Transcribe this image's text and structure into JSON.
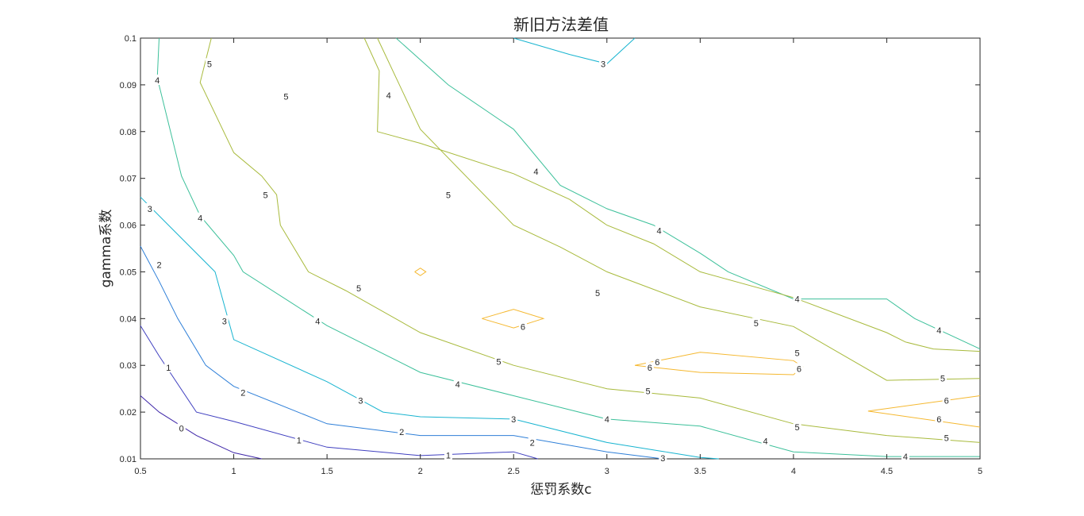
{
  "chart_data": {
    "type": "contour",
    "title": "新旧方法差值",
    "xlabel": "惩罚系数c",
    "ylabel": "gamma系数",
    "xlim": [
      0.5,
      5
    ],
    "ylim": [
      0.01,
      0.1
    ],
    "xticks": [
      "0.5",
      "1",
      "1.5",
      "2",
      "2.5",
      "3",
      "3.5",
      "4",
      "4.5",
      "5"
    ],
    "yticks": [
      "0.01",
      "0.02",
      "0.03",
      "0.04",
      "0.05",
      "0.06",
      "0.07",
      "0.08",
      "0.09",
      "0.1"
    ],
    "grid": false,
    "colors": {
      "0": "#3e26a8",
      "1": "#4040c0",
      "2": "#2e7fd8",
      "3": "#18b4d0",
      "4": "#3cc09a",
      "5": "#a8ba3c",
      "6": "#f5b830"
    },
    "levels": [
      {
        "level": 0,
        "paths": [
          [
            [
              0.5,
              0.0235
            ],
            [
              0.6,
              0.02
            ],
            [
              0.8,
              0.015
            ],
            [
              1.0,
              0.0113
            ],
            [
              1.15,
              0.01
            ]
          ]
        ],
        "labels": [
          {
            "text": "0",
            "at": [
              0.72,
              0.0165
            ]
          }
        ]
      },
      {
        "level": 1,
        "paths": [
          [
            [
              0.5,
              0.0385
            ],
            [
              0.6,
              0.032
            ],
            [
              0.8,
              0.02
            ],
            [
              1.0,
              0.018
            ],
            [
              1.5,
              0.0125
            ],
            [
              2.0,
              0.0107
            ],
            [
              2.5,
              0.0115
            ],
            [
              2.63,
              0.01
            ]
          ]
        ],
        "labels": [
          {
            "text": "1",
            "at": [
              0.65,
              0.0295
            ]
          },
          {
            "text": "1",
            "at": [
              1.35,
              0.014
            ]
          },
          {
            "text": "1",
            "at": [
              2.15,
              0.0108
            ]
          }
        ]
      },
      {
        "level": 2,
        "paths": [
          [
            [
              0.5,
              0.0555
            ],
            [
              0.6,
              0.048
            ],
            [
              0.7,
              0.04
            ],
            [
              0.85,
              0.03
            ],
            [
              1.0,
              0.0255
            ],
            [
              1.5,
              0.0175
            ],
            [
              2.0,
              0.015
            ],
            [
              2.5,
              0.015
            ],
            [
              3.0,
              0.0115
            ],
            [
              3.3,
              0.01
            ]
          ]
        ],
        "labels": [
          {
            "text": "2",
            "at": [
              0.6,
              0.0515
            ]
          },
          {
            "text": "2",
            "at": [
              1.05,
              0.0242
            ]
          },
          {
            "text": "2",
            "at": [
              1.9,
              0.0158
            ]
          },
          {
            "text": "2",
            "at": [
              2.6,
              0.0135
            ]
          }
        ]
      },
      {
        "level": 3,
        "paths": [
          [
            [
              0.5,
              0.066
            ],
            [
              0.65,
              0.06
            ],
            [
              0.9,
              0.05
            ],
            [
              1.0,
              0.0355
            ],
            [
              1.5,
              0.0265
            ],
            [
              1.8,
              0.02
            ],
            [
              2.0,
              0.019
            ],
            [
              2.5,
              0.0185
            ],
            [
              3.0,
              0.0135
            ],
            [
              3.5,
              0.0103
            ],
            [
              3.6,
              0.01
            ]
          ],
          [
            [
              2.5,
              0.1
            ],
            [
              2.8,
              0.0965
            ],
            [
              3.0,
              0.0945
            ],
            [
              3.15,
              0.1
            ]
          ]
        ],
        "labels": [
          {
            "text": "3",
            "at": [
              0.55,
              0.0635
            ]
          },
          {
            "text": "3",
            "at": [
              0.95,
              0.0395
            ]
          },
          {
            "text": "3",
            "at": [
              1.68,
              0.0225
            ]
          },
          {
            "text": "3",
            "at": [
              2.5,
              0.0185
            ]
          },
          {
            "text": "3",
            "at": [
              3.3,
              0.0102
            ]
          },
          {
            "text": "3",
            "at": [
              2.98,
              0.0945
            ]
          }
        ]
      },
      {
        "level": 4,
        "paths": [
          [
            [
              0.6,
              0.1
            ],
            [
              0.59,
              0.0915
            ],
            [
              0.72,
              0.0705
            ],
            [
              0.82,
              0.062
            ],
            [
              1.0,
              0.0535
            ],
            [
              1.05,
              0.05
            ],
            [
              1.5,
              0.0385
            ],
            [
              2.0,
              0.0285
            ],
            [
              2.5,
              0.0235
            ],
            [
              3.0,
              0.0185
            ],
            [
              3.5,
              0.017
            ],
            [
              4.0,
              0.0115
            ],
            [
              4.5,
              0.0105
            ],
            [
              5.0,
              0.0105
            ]
          ],
          [
            [
              1.87,
              0.1
            ],
            [
              2.15,
              0.09
            ],
            [
              2.5,
              0.0805
            ],
            [
              2.75,
              0.0685
            ],
            [
              3.0,
              0.0635
            ],
            [
              3.25,
              0.06
            ],
            [
              3.5,
              0.054
            ],
            [
              3.65,
              0.05
            ],
            [
              4.0,
              0.0442
            ],
            [
              4.5,
              0.0442
            ],
            [
              4.65,
              0.04
            ],
            [
              5.0,
              0.0335
            ]
          ]
        ],
        "labels": [
          {
            "text": "4",
            "at": [
              0.59,
              0.091
            ]
          },
          {
            "text": "4",
            "at": [
              0.82,
              0.0615
            ]
          },
          {
            "text": "4",
            "at": [
              1.45,
              0.0395
            ]
          },
          {
            "text": "4",
            "at": [
              2.2,
              0.026
            ]
          },
          {
            "text": "4",
            "at": [
              3.0,
              0.0185
            ]
          },
          {
            "text": "4",
            "at": [
              3.85,
              0.0138
            ]
          },
          {
            "text": "4",
            "at": [
              4.6,
              0.0105
            ]
          },
          {
            "text": "4",
            "at": [
              1.83,
              0.0878
            ]
          },
          {
            "text": "4",
            "at": [
              2.62,
              0.0715
            ]
          },
          {
            "text": "4",
            "at": [
              3.28,
              0.0588
            ]
          },
          {
            "text": "4",
            "at": [
              4.02,
              0.0442
            ]
          },
          {
            "text": "4",
            "at": [
              4.78,
              0.0375
            ]
          }
        ]
      },
      {
        "level": 5,
        "paths": [
          [
            [
              0.88,
              0.1
            ],
            [
              0.82,
              0.0905
            ],
            [
              1.0,
              0.0755
            ],
            [
              1.15,
              0.0705
            ],
            [
              1.23,
              0.0665
            ],
            [
              1.25,
              0.06
            ],
            [
              1.4,
              0.05
            ],
            [
              1.6,
              0.046
            ],
            [
              2.0,
              0.037
            ],
            [
              2.5,
              0.03
            ],
            [
              3.0,
              0.025
            ],
            [
              3.5,
              0.023
            ],
            [
              4.0,
              0.0175
            ],
            [
              4.5,
              0.015
            ],
            [
              5.0,
              0.0135
            ]
          ],
          [
            [
              1.7,
              0.1
            ],
            [
              1.78,
              0.093
            ],
            [
              1.77,
              0.08
            ],
            [
              2.0,
              0.0775
            ],
            [
              2.5,
              0.071
            ],
            [
              2.8,
              0.0655
            ],
            [
              3.0,
              0.06
            ],
            [
              3.25,
              0.056
            ],
            [
              3.5,
              0.05
            ],
            [
              4.0,
              0.0445
            ],
            [
              4.5,
              0.037
            ],
            [
              4.6,
              0.035
            ],
            [
              4.75,
              0.0335
            ],
            [
              5.0,
              0.033
            ]
          ],
          [
            [
              1.77,
              0.1
            ],
            [
              2.0,
              0.0805
            ],
            [
              2.5,
              0.06
            ],
            [
              2.75,
              0.0553
            ],
            [
              3.0,
              0.05
            ],
            [
              3.5,
              0.0425
            ],
            [
              4.0,
              0.0383
            ],
            [
              4.5,
              0.0268
            ],
            [
              5.0,
              0.0272
            ]
          ]
        ],
        "labels": [
          {
            "text": "5",
            "at": [
              0.87,
              0.0945
            ]
          },
          {
            "text": "5",
            "at": [
              1.28,
              0.0875
            ]
          },
          {
            "text": "5",
            "at": [
              1.17,
              0.0665
            ]
          },
          {
            "text": "5",
            "at": [
              1.67,
              0.0465
            ]
          },
          {
            "text": "5",
            "at": [
              2.42,
              0.0308
            ]
          },
          {
            "text": "5",
            "at": [
              3.22,
              0.0245
            ]
          },
          {
            "text": "5",
            "at": [
              4.02,
              0.0168
            ]
          },
          {
            "text": "5",
            "at": [
              4.82,
              0.0145
            ]
          },
          {
            "text": "5",
            "at": [
              2.15,
              0.0665
            ]
          },
          {
            "text": "5",
            "at": [
              2.95,
              0.0455
            ]
          },
          {
            "text": "5",
            "at": [
              3.8,
              0.039
            ]
          },
          {
            "text": "5",
            "at": [
              4.02,
              0.0327
            ]
          },
          {
            "text": "5",
            "at": [
              4.8,
              0.0272
            ]
          }
        ]
      },
      {
        "level": 6,
        "paths": [
          [
            [
              1.97,
              0.05
            ],
            [
              2.0,
              0.0508
            ],
            [
              2.03,
              0.05
            ],
            [
              2.0,
              0.0492
            ],
            [
              1.97,
              0.05
            ]
          ],
          [
            [
              2.33,
              0.04
            ],
            [
              2.5,
              0.042
            ],
            [
              2.66,
              0.04
            ],
            [
              2.5,
              0.038
            ],
            [
              2.33,
              0.04
            ]
          ],
          [
            [
              3.15,
              0.03
            ],
            [
              3.5,
              0.0328
            ],
            [
              4.0,
              0.031
            ],
            [
              4.05,
              0.0297
            ],
            [
              4.0,
              0.028
            ],
            [
              3.5,
              0.0285
            ],
            [
              3.15,
              0.03
            ]
          ],
          [
            [
              5.0,
              0.0235
            ],
            [
              4.4,
              0.0202
            ],
            [
              5.0,
              0.0168
            ]
          ]
        ],
        "labels": [
          {
            "text": "6",
            "at": [
              2.55,
              0.0383
            ]
          },
          {
            "text": "6",
            "at": [
              3.27,
              0.0307
            ]
          },
          {
            "text": "6",
            "at": [
              3.23,
              0.0295
            ]
          },
          {
            "text": "6",
            "at": [
              4.03,
              0.0293
            ]
          },
          {
            "text": "6",
            "at": [
              4.82,
              0.0225
            ]
          },
          {
            "text": "6",
            "at": [
              4.78,
              0.0185
            ]
          }
        ]
      }
    ]
  }
}
